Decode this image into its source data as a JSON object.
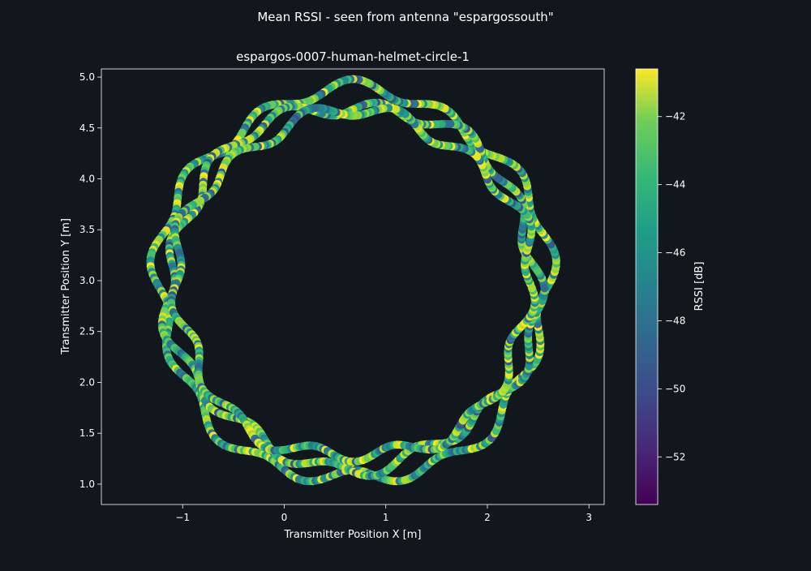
{
  "figure": {
    "suptitle": "Mean RSSI - seen from antenna \"espargossouth\"",
    "background": "#11171d"
  },
  "chart_data": {
    "type": "scatter",
    "title": "espargos-0007-human-helmet-circle-1",
    "xlabel": "Transmitter Position X [m]",
    "ylabel": "Transmitter Position Y [m]",
    "xlim": [
      -1.8,
      3.15
    ],
    "ylim": [
      0.8,
      5.08
    ],
    "xticks": [
      -1,
      0,
      1,
      2,
      3
    ],
    "yticks": [
      1.0,
      1.5,
      2.0,
      2.5,
      3.0,
      3.5,
      4.0,
      4.5,
      5.0
    ],
    "grid": false,
    "colorbar": {
      "label": "RSSI [dB]",
      "range": [
        -53.4,
        -40.6
      ],
      "ticks": [
        -52,
        -50,
        -48,
        -46,
        -44,
        -42
      ],
      "colormap": "viridis"
    },
    "trajectory": {
      "center": [
        0.68,
        2.95
      ],
      "loops": [
        {
          "rx": 1.92,
          "ry": 1.92,
          "phase": 0.0,
          "value_seed": 1
        },
        {
          "rx": 1.82,
          "ry": 1.78,
          "phase": 1.7,
          "value_seed": 2
        },
        {
          "rx": 1.75,
          "ry": 1.7,
          "phase": 3.1,
          "value_seed": 3
        }
      ],
      "wobble_amplitude": 0.07,
      "wobble_frequency": 13
    }
  }
}
